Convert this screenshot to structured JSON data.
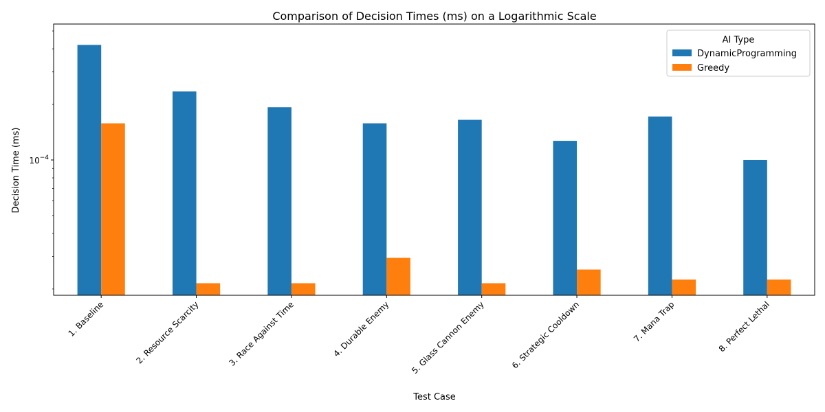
{
  "chart_data": {
    "type": "bar",
    "title": "Comparison of Decision Times (ms) on a Logarithmic Scale",
    "xlabel": "Test Case",
    "ylabel": "Decision Time (ms)",
    "yscale": "log",
    "ylim": [
      1.85e-05,
      0.000545
    ],
    "yticks": [
      {
        "value": 0.0001,
        "base": "10",
        "exponent": "−4"
      }
    ],
    "grid": false,
    "legend": {
      "title": "AI Type",
      "placement": "top-right"
    },
    "categories": [
      "1. Baseline",
      "2. Resource Scarcity",
      "3. Race Against Time",
      "4. Durable Enemy",
      "5. Glass Cannon Enemy",
      "6. Strategic Cooldown",
      "7. Mana Trap",
      "8. Perfect Lethal"
    ],
    "series": [
      {
        "name": "DynamicProgramming",
        "color": "#1f77b4",
        "values": [
          0.00042,
          0.000235,
          0.000193,
          0.000158,
          0.000165,
          0.000127,
          0.000172,
          0.0001
        ]
      },
      {
        "name": "Greedy",
        "color": "#ff7f0e",
        "values": [
          0.000158,
          2.15e-05,
          2.15e-05,
          2.95e-05,
          2.15e-05,
          2.55e-05,
          2.25e-05,
          2.25e-05
        ]
      }
    ]
  }
}
